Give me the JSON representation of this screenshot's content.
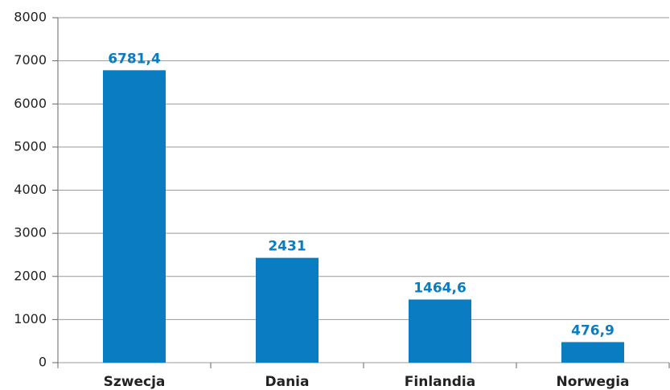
{
  "chart_data": {
    "type": "bar",
    "categories": [
      "Szwecja",
      "Dania",
      "Finlandia",
      "Norwegia"
    ],
    "values": [
      6781.4,
      2431,
      1464.6,
      476.9
    ],
    "value_labels": [
      "6781,4",
      "2431",
      "1464,6",
      "476,9"
    ],
    "color": "#0a7cc1",
    "ylim": [
      0,
      8000
    ],
    "yticks": [
      0,
      1000,
      2000,
      3000,
      4000,
      5000,
      6000,
      7000,
      8000
    ],
    "grid": true
  }
}
